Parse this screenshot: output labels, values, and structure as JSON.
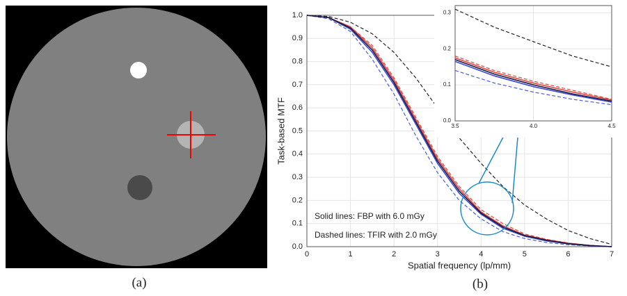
{
  "panel_labels": [
    "(a)",
    "(b)"
  ],
  "chart_data": [
    {
      "type": "line",
      "ylabel": "Task-based MTF",
      "xlabel": "Spatial frequency (lp/mm)",
      "annotations": [
        "Solid lines: FBP with 6.0 mGy",
        "Dashed lines: TFIR with 2.0 mGy"
      ],
      "xlim": [
        0,
        7
      ],
      "xticks": [
        0,
        1,
        2,
        3,
        4,
        5,
        6,
        7
      ],
      "ylim": [
        0,
        1
      ],
      "yticks": [
        {
          "value": 0,
          "label": "0.0"
        },
        0.1,
        0.2,
        0.3,
        0.4,
        0.5,
        0.6,
        0.7,
        0.8,
        0.9,
        {
          "value": 1,
          "label": "1.0"
        }
      ],
      "grid": true,
      "x": [
        0,
        0.5,
        1,
        1.5,
        2,
        2.5,
        3,
        3.5,
        4,
        4.5,
        5,
        5.5,
        6,
        6.5,
        7
      ],
      "series": [
        {
          "color": "#222222",
          "dashed": true,
          "values": [
            1.0,
            0.995,
            0.97,
            0.92,
            0.84,
            0.73,
            0.6,
            0.47,
            0.36,
            0.26,
            0.18,
            0.12,
            0.07,
            0.035,
            0.01
          ]
        },
        {
          "color": "#e8403a",
          "dashed": true,
          "values": [
            1.0,
            0.99,
            0.95,
            0.87,
            0.73,
            0.56,
            0.39,
            0.26,
            0.16,
            0.1,
            0.055,
            0.032,
            0.016,
            0.006,
            0.0
          ]
        },
        {
          "color": "#4a5de0",
          "dashed": true,
          "values": [
            1.0,
            0.985,
            0.93,
            0.81,
            0.66,
            0.48,
            0.32,
            0.2,
            0.12,
            0.065,
            0.035,
            0.018,
            0.008,
            0.003,
            0.0
          ]
        },
        {
          "color": "#e8403a",
          "dashed": false,
          "values": [
            1.0,
            0.99,
            0.95,
            0.86,
            0.72,
            0.55,
            0.38,
            0.25,
            0.15,
            0.09,
            0.05,
            0.03,
            0.015,
            0.005,
            0.0
          ]
        },
        {
          "color": "#3a4ad0",
          "dashed": false,
          "values": [
            1.0,
            0.99,
            0.94,
            0.84,
            0.7,
            0.53,
            0.36,
            0.23,
            0.14,
            0.08,
            0.045,
            0.025,
            0.012,
            0.004,
            0.0
          ]
        },
        {
          "color": "#1a1a40",
          "dashed": false,
          "values": [
            1.0,
            0.99,
            0.945,
            0.85,
            0.71,
            0.54,
            0.37,
            0.24,
            0.145,
            0.085,
            0.048,
            0.028,
            0.013,
            0.005,
            0.0
          ]
        }
      ]
    },
    {
      "type": "line",
      "xlim": [
        3.5,
        4.5
      ],
      "xticks": [
        3.5,
        {
          "value": 4,
          "label": "4.0"
        },
        4.5
      ],
      "ylim": [
        0,
        0.32
      ],
      "yticks": [
        {
          "value": 0,
          "label": "0.0"
        },
        0.1,
        0.2,
        0.3
      ],
      "grid": true,
      "x": [
        3.5,
        3.75,
        4,
        4.25,
        4.5
      ],
      "series": [
        {
          "color": "#222222",
          "dashed": true,
          "values": [
            0.31,
            0.26,
            0.22,
            0.18,
            0.15
          ]
        },
        {
          "color": "#e8403a",
          "dashed": true,
          "values": [
            0.18,
            0.14,
            0.11,
            0.085,
            0.06
          ]
        },
        {
          "color": "#4a5de0",
          "dashed": true,
          "values": [
            0.14,
            0.105,
            0.08,
            0.06,
            0.045
          ]
        },
        {
          "color": "#e8403a",
          "dashed": false,
          "values": [
            0.175,
            0.135,
            0.105,
            0.08,
            0.058
          ]
        },
        {
          "color": "#3a4ad0",
          "dashed": false,
          "values": [
            0.165,
            0.125,
            0.095,
            0.072,
            0.052
          ]
        },
        {
          "color": "#1a1a40",
          "dashed": false,
          "values": [
            0.17,
            0.13,
            0.1,
            0.075,
            0.055
          ]
        }
      ]
    }
  ]
}
